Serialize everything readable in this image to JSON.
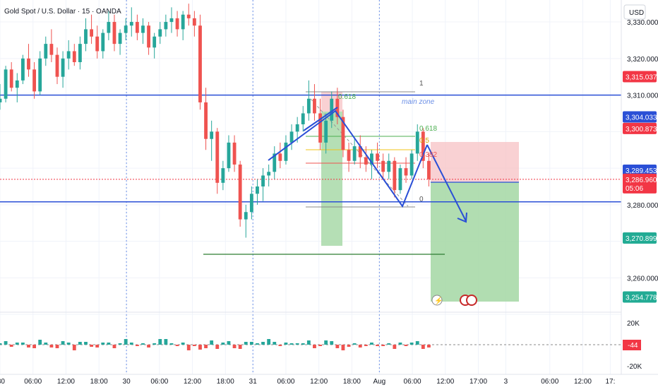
{
  "header": {
    "title": "Gold Spot / U.S. Dollar · 15 · OANDA",
    "currency": "USD"
  },
  "chart_data": {
    "type": "candlestick",
    "title": "Gold Spot / U.S. Dollar · 15 · OANDA",
    "ylabel": "USD",
    "ylim": [
      3251,
      3336
    ],
    "grid": true,
    "price_ticks": [
      3330,
      3320,
      3310,
      3300,
      3290,
      3280,
      3270,
      3260,
      3250
    ],
    "price_tick_labels": [
      "3,330.000",
      "3,320.000",
      "3,310.000",
      "",
      "",
      "3,280.000",
      "",
      "3,260.000",
      ""
    ],
    "x_ticks": [
      {
        "i": 0,
        "label": ":30"
      },
      {
        "i": 6,
        "label": "06:00"
      },
      {
        "i": 12,
        "label": "12:00"
      },
      {
        "i": 18,
        "label": "18:00"
      },
      {
        "i": 23,
        "label": "30"
      },
      {
        "i": 29,
        "label": "06:00"
      },
      {
        "i": 35,
        "label": "12:00"
      },
      {
        "i": 41,
        "label": "18:00"
      },
      {
        "i": 46,
        "label": "31"
      },
      {
        "i": 52,
        "label": "06:00"
      },
      {
        "i": 58,
        "label": "12:00"
      },
      {
        "i": 64,
        "label": "18:00"
      },
      {
        "i": 69,
        "label": "Aug"
      },
      {
        "i": 75,
        "label": "06:00"
      },
      {
        "i": 81,
        "label": "12:00"
      },
      {
        "i": 87,
        "label": "17:00"
      },
      {
        "i": 92,
        "label": "3"
      },
      {
        "i": 100,
        "label": "06:00"
      },
      {
        "i": 106,
        "label": "12:00"
      },
      {
        "i": 111,
        "label": "17:"
      }
    ],
    "session_breaks": [
      23,
      46,
      69
    ],
    "x_range": [
      0,
      113
    ],
    "candles": [
      [
        3308,
        3313,
        3306,
        3309
      ],
      [
        3309,
        3318,
        3308,
        3317
      ],
      [
        3317,
        3319,
        3311,
        3312
      ],
      [
        3312,
        3316,
        3308,
        3314
      ],
      [
        3314,
        3321,
        3313,
        3320
      ],
      [
        3320,
        3324,
        3315,
        3317
      ],
      [
        3317,
        3319,
        3309,
        3311
      ],
      [
        3311,
        3322,
        3310,
        3320
      ],
      [
        3320,
        3326,
        3318,
        3324
      ],
      [
        3324,
        3328,
        3319,
        3321
      ],
      [
        3321,
        3323,
        3313,
        3315
      ],
      [
        3315,
        3322,
        3312,
        3320
      ],
      [
        3320,
        3325,
        3317,
        3322
      ],
      [
        3322,
        3324,
        3318,
        3319
      ],
      [
        3319,
        3326,
        3317,
        3324
      ],
      [
        3324,
        3331,
        3322,
        3328
      ],
      [
        3328,
        3332,
        3324,
        3326
      ],
      [
        3326,
        3329,
        3320,
        3322
      ],
      [
        3322,
        3328,
        3320,
        3327
      ],
      [
        3327,
        3333,
        3325,
        3330
      ],
      [
        3330,
        3332,
        3322,
        3324
      ],
      [
        3324,
        3328,
        3321,
        3327
      ],
      [
        3327,
        3331,
        3325,
        3329
      ],
      [
        3329,
        3334,
        3326,
        3330
      ],
      [
        3330,
        3332,
        3325,
        3327
      ],
      [
        3327,
        3331,
        3324,
        3329
      ],
      [
        3329,
        3330,
        3321,
        3323
      ],
      [
        3323,
        3327,
        3320,
        3326
      ],
      [
        3326,
        3330,
        3324,
        3328
      ],
      [
        3328,
        3332,
        3326,
        3330
      ],
      [
        3330,
        3334,
        3327,
        3331
      ],
      [
        3331,
        3333,
        3326,
        3328
      ],
      [
        3328,
        3333,
        3325,
        3332
      ],
      [
        3332,
        3335,
        3329,
        3331
      ],
      [
        3331,
        3333,
        3326,
        3329
      ],
      [
        3329,
        3332,
        3306,
        3308
      ],
      [
        3308,
        3312,
        3295,
        3298
      ],
      [
        3298,
        3303,
        3292,
        3300
      ],
      [
        3300,
        3301,
        3283,
        3286
      ],
      [
        3286,
        3292,
        3284,
        3290
      ],
      [
        3290,
        3299,
        3289,
        3297
      ],
      [
        3297,
        3299,
        3289,
        3291
      ],
      [
        3291,
        3292,
        3274,
        3276
      ],
      [
        3276,
        3280,
        3271,
        3278
      ],
      [
        3278,
        3285,
        3276,
        3283
      ],
      [
        3283,
        3287,
        3280,
        3285
      ],
      [
        3285,
        3290,
        3281,
        3288
      ],
      [
        3288,
        3291,
        3285,
        3289
      ],
      [
        3289,
        3296,
        3287,
        3294
      ],
      [
        3294,
        3297,
        3290,
        3292
      ],
      [
        3292,
        3299,
        3291,
        3297
      ],
      [
        3297,
        3302,
        3295,
        3300
      ],
      [
        3300,
        3304,
        3297,
        3302
      ],
      [
        3302,
        3307,
        3300,
        3305
      ],
      [
        3305,
        3314,
        3303,
        3309
      ],
      [
        3309,
        3313,
        3303,
        3305
      ],
      [
        3305,
        3309,
        3295,
        3297
      ],
      [
        3297,
        3305,
        3294,
        3303
      ],
      [
        3303,
        3311,
        3301,
        3309
      ],
      [
        3309,
        3312,
        3302,
        3304
      ],
      [
        3304,
        3306,
        3293,
        3295
      ],
      [
        3295,
        3297,
        3289,
        3292
      ],
      [
        3292,
        3298,
        3291,
        3296
      ],
      [
        3296,
        3299,
        3290,
        3293
      ],
      [
        3293,
        3296,
        3289,
        3291
      ],
      [
        3291,
        3295,
        3287,
        3294
      ],
      [
        3294,
        3297,
        3290,
        3292
      ],
      [
        3292,
        3294,
        3287,
        3289
      ],
      [
        3289,
        3294,
        3287,
        3292
      ],
      [
        3292,
        3293,
        3282,
        3284
      ],
      [
        3284,
        3291,
        3283,
        3290
      ],
      [
        3290,
        3293,
        3286,
        3288
      ],
      [
        3288,
        3295,
        3287,
        3294
      ],
      [
        3294,
        3302,
        3292,
        3300
      ],
      [
        3300,
        3301,
        3290,
        3292
      ],
      [
        3292,
        3294,
        3285,
        3287
      ]
    ],
    "horizontal_lines": [
      {
        "price": 3310.0,
        "color": "#2a4fd6",
        "style": "solid",
        "label": "main zone"
      },
      {
        "price": 3280.8,
        "color": "#2a4fd6",
        "style": "solid"
      },
      {
        "price": 3286.96,
        "color": "#f23645",
        "style": "dotted"
      }
    ],
    "price_labels": [
      {
        "price": 3315.037,
        "text": "3,315.037",
        "bg": "#f23645"
      },
      {
        "price": 3304.033,
        "text": "3,304.033",
        "bg": "#2a4fd6"
      },
      {
        "price": 3300.873,
        "text": "3,300.873",
        "bg": "#f23645"
      },
      {
        "price": 3289.453,
        "text": "3,289.453",
        "bg": "#2a4fd6"
      },
      {
        "price": 3286.96,
        "text": "3,286.960",
        "bg": "#f23645",
        "sub": "05:06"
      },
      {
        "price": 3270.899,
        "text": "3,270.899",
        "bg": "#22ab94"
      },
      {
        "price": 3254.778,
        "text": "3,254.778",
        "bg": "#22ab94"
      }
    ],
    "fib_labels": [
      "1",
      "0.618",
      "0.5",
      "0.382",
      "0",
      "0.618"
    ],
    "zone_label": "main zone",
    "volume": {
      "axis_labels": [
        "20K",
        "-20K"
      ],
      "current": "-44",
      "current_bg": "#f23645"
    },
    "colors": {
      "up": "#26a69a",
      "down": "#ef5350",
      "line": "#2a4fd6"
    }
  }
}
